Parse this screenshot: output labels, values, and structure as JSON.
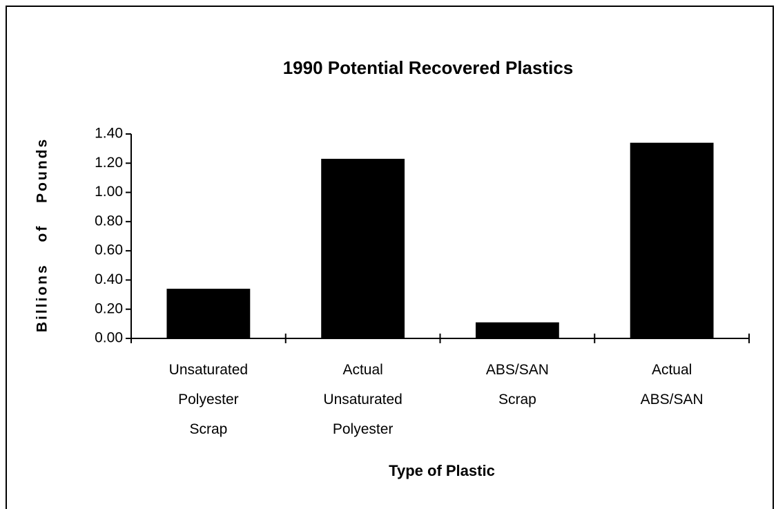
{
  "chart_data": {
    "type": "bar",
    "title": "1990 Potential Recovered Plastics",
    "xlabel": "Type of Plastic",
    "ylabel": "Billions of Pounds",
    "categories": [
      "Unsaturated\nPolyester\nScrap",
      "Actual\nUnsaturated\nPolyester",
      "ABS/SAN\nScrap",
      "Actual\nABS/SAN"
    ],
    "values": [
      0.34,
      1.23,
      0.11,
      1.34
    ],
    "color": "#000000",
    "ylim": [
      0,
      1.4
    ],
    "yticks": [
      {
        "value": 0,
        "label": "0.00"
      },
      {
        "value": 0.2,
        "label": "0.20"
      },
      {
        "value": 0.4,
        "label": "0.40"
      },
      {
        "value": 0.6,
        "label": "0.60"
      },
      {
        "value": 0.8,
        "label": "0.80"
      },
      {
        "value": 1,
        "label": "1.00"
      },
      {
        "value": 1.2,
        "label": "1.20"
      },
      {
        "value": 1.4,
        "label": "1.40"
      }
    ],
    "grid": false
  }
}
